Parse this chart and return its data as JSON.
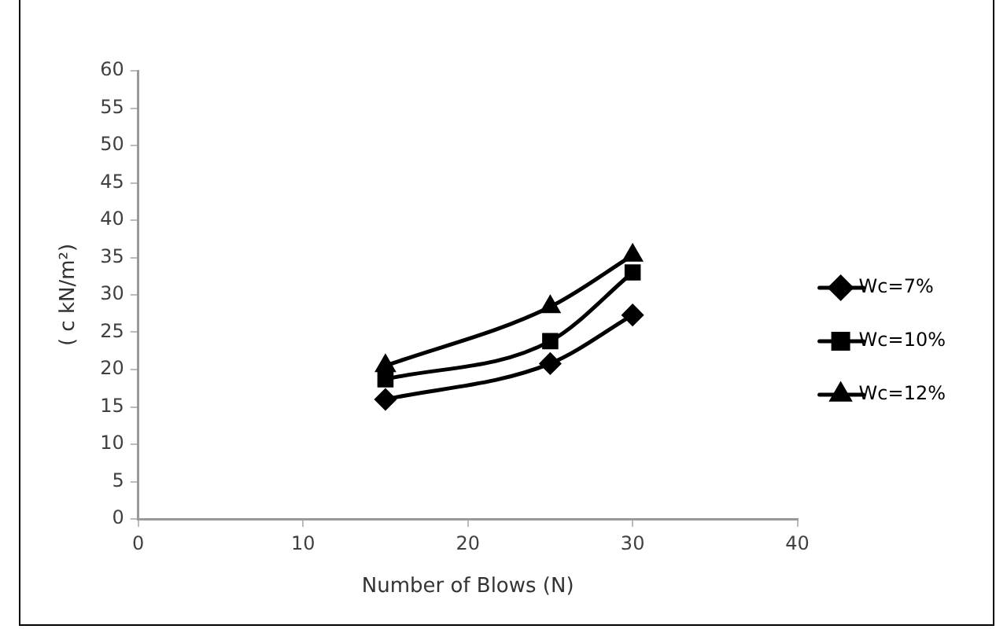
{
  "chart_data": {
    "type": "line",
    "xlabel": "Number of Blows (N)",
    "ylabel": "( c kN/m²)",
    "x": [
      15,
      25,
      30
    ],
    "series": [
      {
        "name": "Wc=7%",
        "color": "#000000",
        "marker": "diamond",
        "values": [
          16,
          20.8,
          27.3
        ]
      },
      {
        "name": "Wc=10%",
        "color": "#000000",
        "marker": "square",
        "values": [
          18.7,
          23.8,
          33
        ]
      },
      {
        "name": "Wc=12%",
        "color": "#000000",
        "marker": "triangle",
        "values": [
          20.5,
          28.4,
          35.3
        ]
      }
    ],
    "xlim": [
      0,
      40
    ],
    "xticks": [
      0,
      10,
      20,
      30,
      40
    ],
    "ylim": [
      0,
      60
    ],
    "yticks": [
      0,
      5,
      10,
      15,
      20,
      25,
      30,
      35,
      40,
      45,
      50,
      55,
      60
    ],
    "grid": false,
    "legend": "right"
  }
}
